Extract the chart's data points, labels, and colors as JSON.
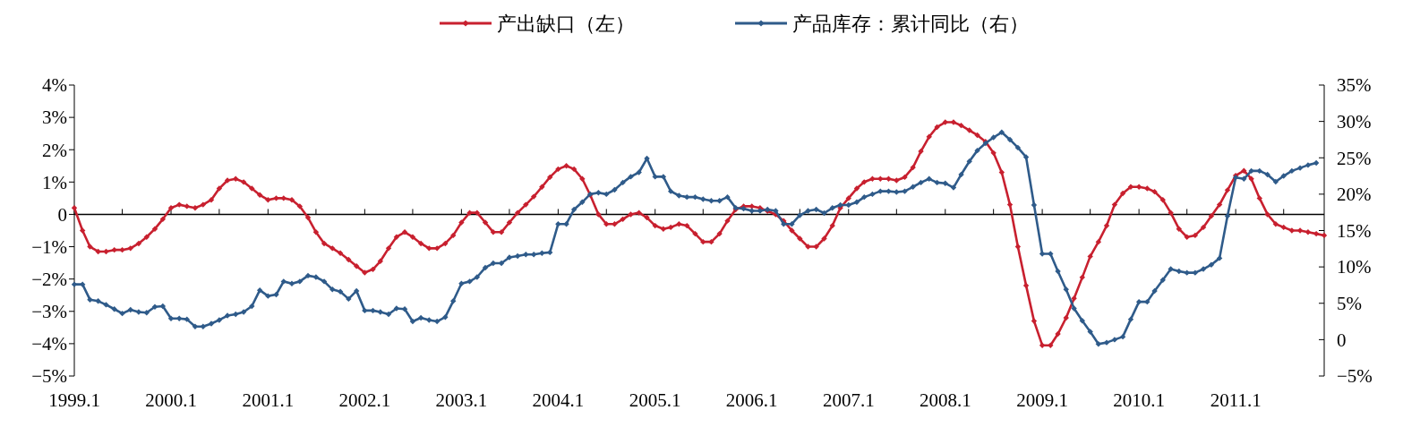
{
  "chart_data": {
    "type": "line",
    "legend": "top",
    "marker": "diamond",
    "line_style": "solid",
    "grid": false,
    "xlim": [
      "1999-01",
      "2011-12"
    ],
    "xticks": [
      {
        "value": "1999-01",
        "label": "1999.1"
      },
      {
        "value": "1999-07",
        "label": null
      },
      {
        "value": "2000-01",
        "label": "2000.1"
      },
      {
        "value": "2000-07",
        "label": null
      },
      {
        "value": "2001-01",
        "label": "2001.1"
      },
      {
        "value": "2001-07",
        "label": null
      },
      {
        "value": "2002-01",
        "label": "2002.1"
      },
      {
        "value": "2002-07",
        "label": null
      },
      {
        "value": "2003-01",
        "label": "2003.1"
      },
      {
        "value": "2003-07",
        "label": null
      },
      {
        "value": "2004-01",
        "label": "2004.1"
      },
      {
        "value": "2004-07",
        "label": null
      },
      {
        "value": "2005-01",
        "label": "2005.1"
      },
      {
        "value": "2005-07",
        "label": null
      },
      {
        "value": "2006-01",
        "label": "2006.1"
      },
      {
        "value": "2006-07",
        "label": null
      },
      {
        "value": "2007-01",
        "label": "2007.1"
      },
      {
        "value": "2007-07",
        "label": null
      },
      {
        "value": "2008-01",
        "label": "2008.1"
      },
      {
        "value": "2008-07",
        "label": null
      },
      {
        "value": "2009-01",
        "label": "2009.1"
      },
      {
        "value": "2009-07",
        "label": null
      },
      {
        "value": "2010-01",
        "label": "2010.1"
      },
      {
        "value": "2010-07",
        "label": null
      },
      {
        "value": "2011-01",
        "label": "2011.1"
      },
      {
        "value": "2011-07",
        "label": null
      }
    ],
    "x": [
      "1999-01",
      "1999-02",
      "1999-03",
      "1999-04",
      "1999-05",
      "1999-06",
      "1999-07",
      "1999-08",
      "1999-09",
      "1999-10",
      "1999-11",
      "1999-12",
      "2000-01",
      "2000-02",
      "2000-03",
      "2000-04",
      "2000-05",
      "2000-06",
      "2000-07",
      "2000-08",
      "2000-09",
      "2000-10",
      "2000-11",
      "2000-12",
      "2001-01",
      "2001-02",
      "2001-03",
      "2001-04",
      "2001-05",
      "2001-06",
      "2001-07",
      "2001-08",
      "2001-09",
      "2001-10",
      "2001-11",
      "2001-12",
      "2002-01",
      "2002-02",
      "2002-03",
      "2002-04",
      "2002-05",
      "2002-06",
      "2002-07",
      "2002-08",
      "2002-09",
      "2002-10",
      "2002-11",
      "2002-12",
      "2003-01",
      "2003-02",
      "2003-03",
      "2003-04",
      "2003-05",
      "2003-06",
      "2003-07",
      "2003-08",
      "2003-09",
      "2003-10",
      "2003-11",
      "2003-12",
      "2004-01",
      "2004-02",
      "2004-03",
      "2004-04",
      "2004-05",
      "2004-06",
      "2004-07",
      "2004-08",
      "2004-09",
      "2004-10",
      "2004-11",
      "2004-12",
      "2005-01",
      "2005-02",
      "2005-03",
      "2005-04",
      "2005-05",
      "2005-06",
      "2005-07",
      "2005-08",
      "2005-09",
      "2005-10",
      "2005-11",
      "2005-12",
      "2006-01",
      "2006-02",
      "2006-03",
      "2006-04",
      "2006-05",
      "2006-06",
      "2006-07",
      "2006-08",
      "2006-09",
      "2006-10",
      "2006-11",
      "2006-12",
      "2007-01",
      "2007-02",
      "2007-03",
      "2007-04",
      "2007-05",
      "2007-06",
      "2007-07",
      "2007-08",
      "2007-09",
      "2007-10",
      "2007-11",
      "2007-12",
      "2008-01",
      "2008-02",
      "2008-03",
      "2008-04",
      "2008-05",
      "2008-06",
      "2008-07",
      "2008-08",
      "2008-09",
      "2008-10",
      "2008-11",
      "2008-12",
      "2009-01",
      "2009-02",
      "2009-03",
      "2009-04",
      "2009-05",
      "2009-06",
      "2009-07",
      "2009-08",
      "2009-09",
      "2009-10",
      "2009-11",
      "2009-12",
      "2010-01",
      "2010-02",
      "2010-03",
      "2010-04",
      "2010-05",
      "2010-06",
      "2010-07",
      "2010-08",
      "2010-09",
      "2010-10",
      "2010-11",
      "2010-12",
      "2011-01",
      "2011-02",
      "2011-03",
      "2011-04",
      "2011-05",
      "2011-06",
      "2011-07",
      "2011-08",
      "2011-09",
      "2011-10",
      "2011-11",
      "2011-12"
    ],
    "ylim": [
      -5,
      4
    ],
    "yticks": [
      {
        "value": 4,
        "label": "4%"
      },
      {
        "value": 3,
        "label": "3%"
      },
      {
        "value": 2,
        "label": "2%"
      },
      {
        "value": 1,
        "label": "1%"
      },
      0,
      {
        "value": -1,
        "label": "−1%"
      },
      {
        "value": -2,
        "label": "−2%"
      },
      {
        "value": -3,
        "label": "−3%"
      },
      {
        "value": -4,
        "label": "−4%"
      },
      {
        "value": -5,
        "label": "−5%"
      }
    ],
    "y2lim": [
      -5,
      35
    ],
    "y2ticks": [
      {
        "value": 35,
        "label": "35%"
      },
      {
        "value": 30,
        "label": "30%"
      },
      {
        "value": 25,
        "label": "25%"
      },
      {
        "value": 20,
        "label": "20%"
      },
      {
        "value": 15,
        "label": "15%"
      },
      {
        "value": 10,
        "label": "10%"
      },
      {
        "value": 5,
        "label": "5%"
      },
      0,
      {
        "value": -5,
        "label": "−5%"
      }
    ],
    "ref_lines": [
      {
        "axis": "y",
        "value": 0,
        "color": "#000000"
      }
    ],
    "series": [
      {
        "name": "产出缺口（左）",
        "color": "#c8202f",
        "axis": "y",
        "values": [
          0.2,
          -0.5,
          -1.0,
          -1.15,
          -1.15,
          -1.1,
          -1.1,
          -1.05,
          -0.9,
          -0.7,
          -0.45,
          -0.15,
          0.2,
          0.3,
          0.25,
          0.2,
          0.3,
          0.45,
          0.8,
          1.05,
          1.1,
          1.0,
          0.8,
          0.6,
          0.45,
          0.5,
          0.5,
          0.45,
          0.25,
          -0.1,
          -0.55,
          -0.9,
          -1.05,
          -1.2,
          -1.4,
          -1.6,
          -1.8,
          -1.7,
          -1.45,
          -1.05,
          -0.7,
          -0.55,
          -0.7,
          -0.9,
          -1.05,
          -1.05,
          -0.9,
          -0.65,
          -0.25,
          0.05,
          0.05,
          -0.25,
          -0.55,
          -0.55,
          -0.25,
          0.05,
          0.3,
          0.55,
          0.85,
          1.15,
          1.4,
          1.5,
          1.4,
          1.1,
          0.6,
          0.0,
          -0.3,
          -0.3,
          -0.15,
          0.0,
          0.05,
          -0.1,
          -0.35,
          -0.45,
          -0.4,
          -0.3,
          -0.35,
          -0.6,
          -0.85,
          -0.85,
          -0.6,
          -0.2,
          0.15,
          0.25,
          0.25,
          0.2,
          0.1,
          0.0,
          -0.2,
          -0.5,
          -0.75,
          -1.0,
          -1.0,
          -0.75,
          -0.35,
          0.2,
          0.5,
          0.8,
          1.0,
          1.1,
          1.1,
          1.1,
          1.05,
          1.15,
          1.45,
          1.95,
          2.4,
          2.7,
          2.85,
          2.85,
          2.75,
          2.6,
          2.45,
          2.25,
          1.9,
          1.3,
          0.3,
          -1.0,
          -2.2,
          -3.3,
          -4.05,
          -4.05,
          -3.7,
          -3.2,
          -2.6,
          -1.95,
          -1.3,
          -0.85,
          -0.35,
          0.3,
          0.65,
          0.85,
          0.85,
          0.8,
          0.7,
          0.45,
          0.05,
          -0.45,
          -0.7,
          -0.65,
          -0.4,
          -0.05,
          0.3,
          0.75,
          1.2,
          1.35,
          1.1,
          0.5,
          0.0,
          -0.3,
          -0.4,
          -0.5,
          -0.5,
          -0.55,
          -0.6,
          -0.65
        ]
      },
      {
        "name": "产品库存：累计同比（右）",
        "color": "#2f5b8a",
        "axis": "y2",
        "values": [
          7.6,
          7.6,
          5.5,
          5.3,
          4.8,
          4.2,
          3.6,
          4.1,
          3.8,
          3.7,
          4.5,
          4.6,
          2.9,
          2.9,
          2.8,
          1.8,
          1.8,
          2.2,
          2.7,
          3.3,
          3.5,
          3.8,
          4.6,
          6.8,
          6.0,
          6.2,
          8.0,
          7.7,
          8.0,
          8.8,
          8.6,
          8.0,
          6.9,
          6.6,
          5.6,
          6.7,
          4.0,
          4.0,
          3.8,
          3.5,
          4.3,
          4.2,
          2.5,
          3.0,
          2.7,
          2.5,
          3.1,
          5.3,
          7.7,
          8.0,
          8.6,
          9.9,
          10.5,
          10.5,
          11.3,
          11.5,
          11.7,
          11.7,
          11.9,
          12.0,
          15.9,
          15.9,
          17.9,
          18.9,
          20.0,
          20.2,
          20.0,
          20.6,
          21.6,
          22.4,
          23.0,
          24.9,
          22.4,
          22.4,
          20.4,
          19.8,
          19.6,
          19.6,
          19.3,
          19.1,
          19.1,
          19.6,
          18.1,
          18.0,
          17.7,
          17.7,
          17.9,
          17.7,
          15.9,
          15.9,
          17.1,
          17.7,
          17.9,
          17.4,
          18.1,
          18.5,
          18.5,
          18.9,
          19.6,
          20.0,
          20.4,
          20.4,
          20.3,
          20.4,
          21.0,
          21.6,
          22.1,
          21.6,
          21.5,
          20.9,
          22.7,
          24.5,
          26.0,
          27.0,
          27.8,
          28.5,
          27.5,
          26.4,
          25.1,
          18.5,
          11.8,
          11.8,
          9.4,
          6.9,
          4.3,
          2.6,
          1.1,
          -0.6,
          -0.4,
          0.0,
          0.4,
          2.8,
          5.2,
          5.2,
          6.7,
          8.2,
          9.7,
          9.4,
          9.2,
          9.2,
          9.7,
          10.3,
          11.2,
          17.0,
          22.3,
          22.1,
          23.2,
          23.2,
          22.7,
          21.7,
          22.5,
          23.2,
          23.6,
          24.0,
          24.3,
          null
        ]
      }
    ]
  }
}
